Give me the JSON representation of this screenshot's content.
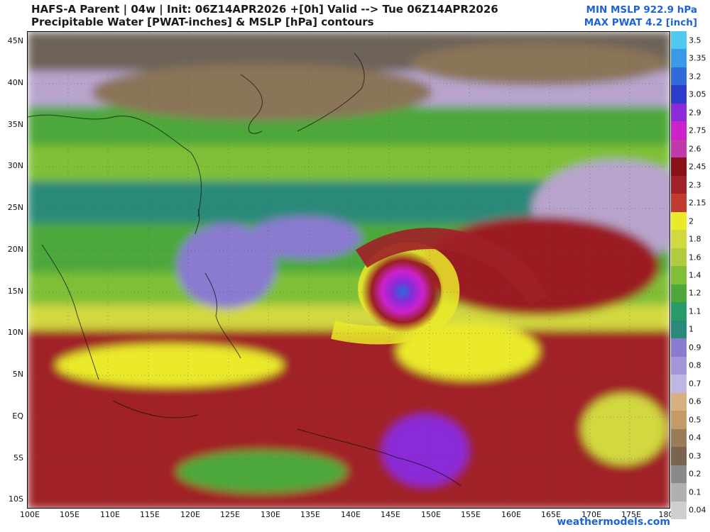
{
  "header": {
    "title_line1": "HAFS-A Parent | 04w | Init: 06Z14APR2026 +[0h] Valid --> Tue 06Z14APR2026",
    "title_line2": "Precipitable Water [PWAT-inches] & MSLP [hPa] contours",
    "min_mslp": "MIN MSLP 922.9 hPa",
    "max_pwat": "MAX PWAT  4.2 [inch]"
  },
  "map": {
    "lat_labels": [
      "45N",
      "40N",
      "35N",
      "30N",
      "25N",
      "20N",
      "15N",
      "10N",
      "5N",
      "EQ",
      "5S",
      "10S"
    ],
    "lon_labels": [
      "100E",
      "105E",
      "110E",
      "115E",
      "120E",
      "125E",
      "130E",
      "135E",
      "140E",
      "145E",
      "150E",
      "155E",
      "160E",
      "165E",
      "170E",
      "175E",
      "180"
    ],
    "colors": {
      "very_dry": "#8a7458",
      "dry": "#b8a4cc",
      "moist_green": "#4ea83a",
      "teal": "#2a8a7a",
      "yellow": "#eaea2a",
      "very_moist": "#9a1f22",
      "extreme": "#cc22cc",
      "cyclone_core": "#2a6ad8"
    }
  },
  "colorbar": {
    "labels": [
      "3.5",
      "3.35",
      "3.2",
      "3.05",
      "2.9",
      "2.75",
      "2.6",
      "2.45",
      "2.3",
      "2.15",
      "2",
      "1.8",
      "1.6",
      "1.4",
      "1.2",
      "1.1",
      "1",
      "0.9",
      "0.8",
      "0.7",
      "0.6",
      "0.5",
      "0.4",
      "0.3",
      "0.2",
      "0.1",
      "0.04"
    ],
    "colors": [
      "#4ec8ee",
      "#3a9ae8",
      "#2e6ad8",
      "#2c3cc8",
      "#8a2ad8",
      "#cc22cc",
      "#c03aaa",
      "#8a1018",
      "#a02028",
      "#c03a30",
      "#eaea2a",
      "#d2d840",
      "#b0cc3e",
      "#80c038",
      "#4ea83a",
      "#2a9a6a",
      "#2a8a7a",
      "#8a7ad0",
      "#a496d8",
      "#c0b6e4",
      "#d8b080",
      "#c49a68",
      "#9a7c58",
      "#7a6450",
      "#8a8a8a",
      "#b0b0b0",
      "#cfcfcf"
    ]
  },
  "credit": "weathermodels.com"
}
